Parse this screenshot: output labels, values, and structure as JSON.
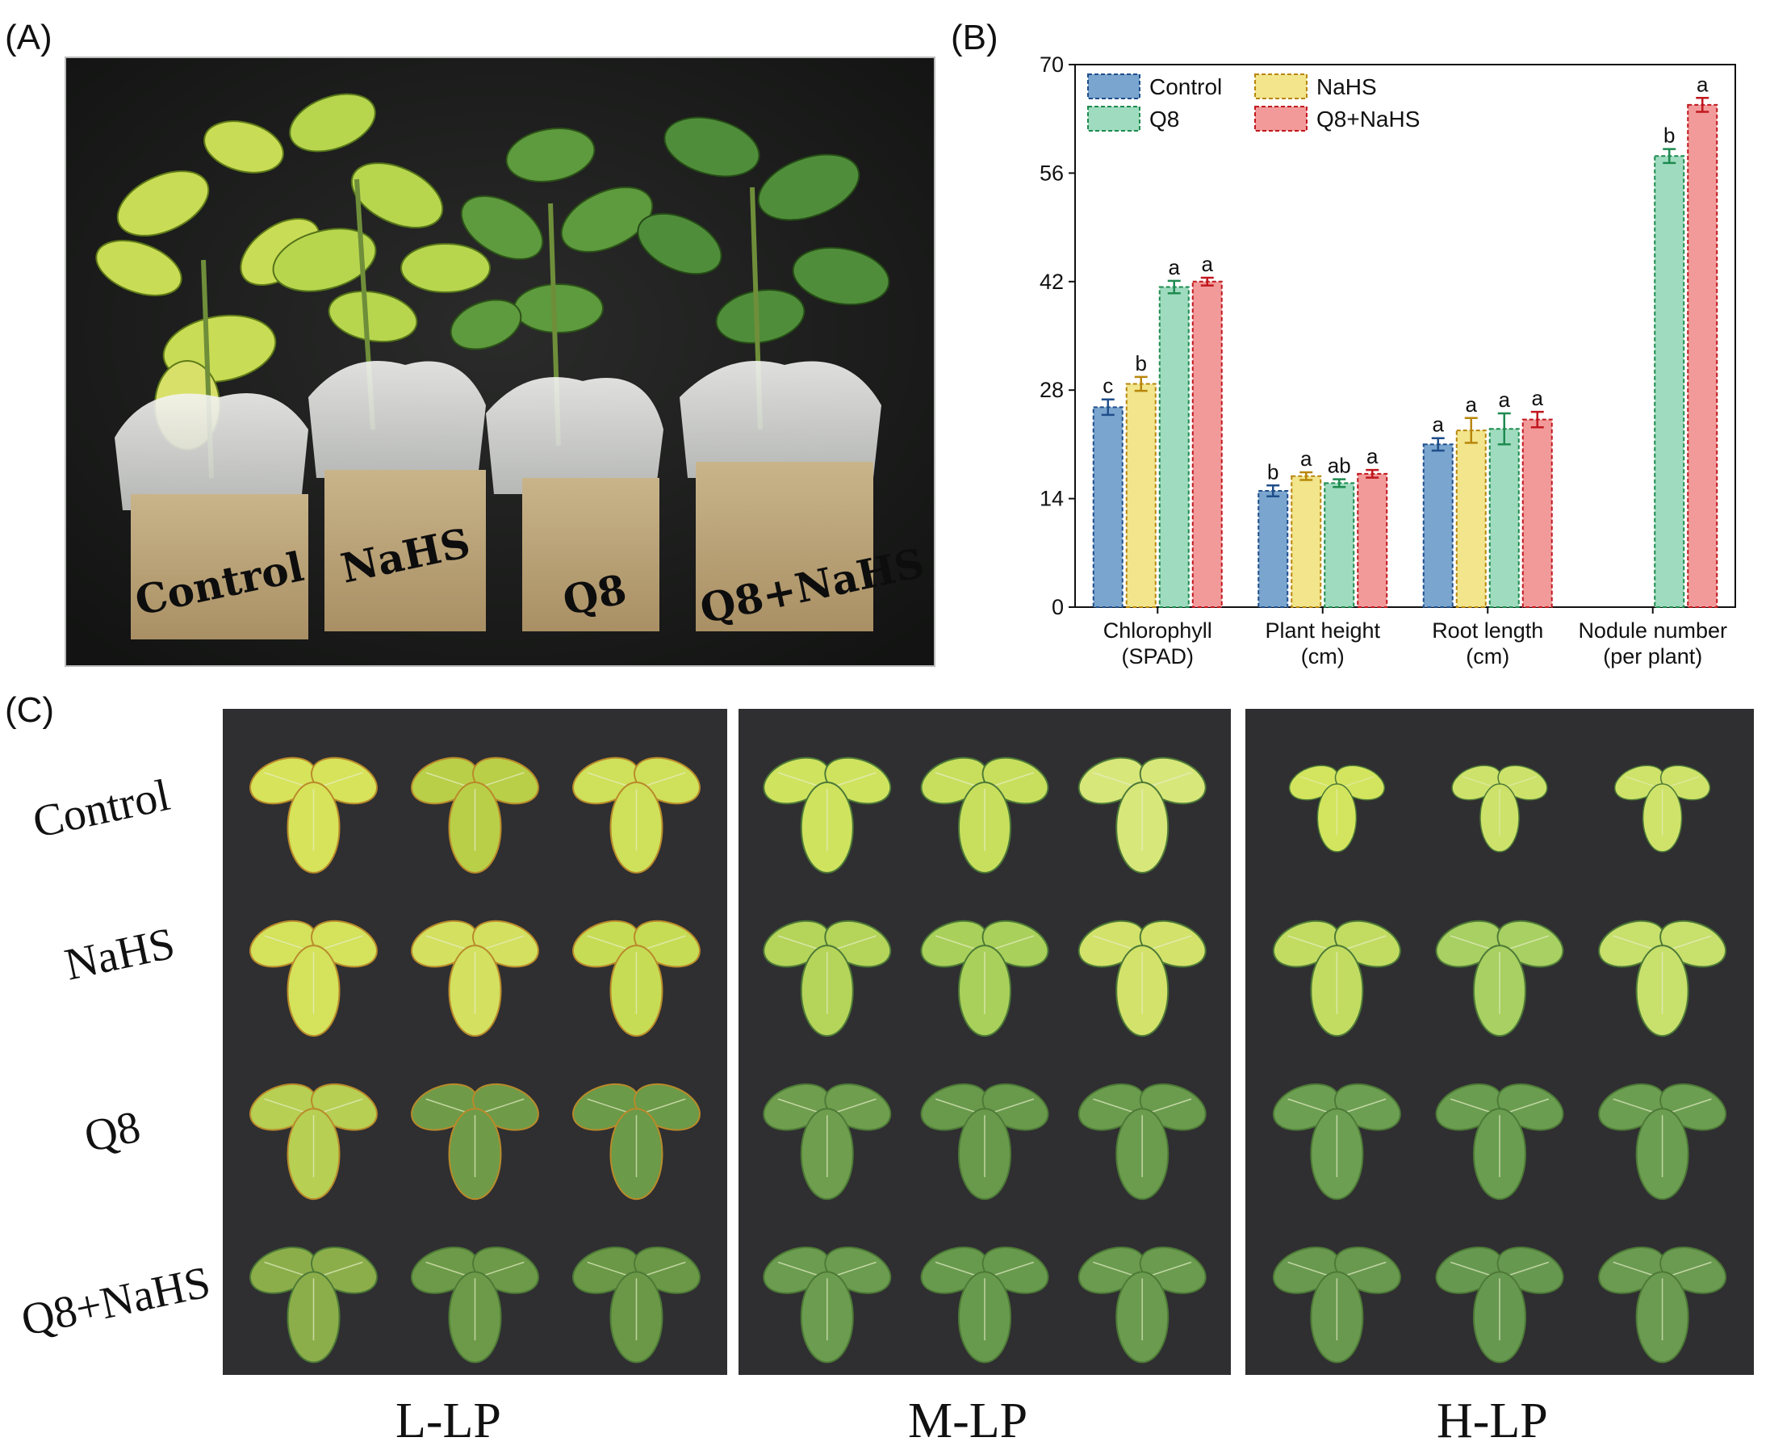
{
  "panels": {
    "a": "(A)",
    "b": "(B)",
    "c": "(C)"
  },
  "photo_a": {
    "pot_labels": [
      "Control",
      "NaHS",
      "Q8",
      "Q8+NaHS"
    ]
  },
  "chart_data": {
    "type": "bar",
    "categories": [
      "Chlorophyll\n(SPAD)",
      "Plant height\n(cm)",
      "Root length\n(cm)",
      "Nodule number\n(per plant)"
    ],
    "ylim": [
      0,
      70
    ],
    "yticks": [
      0,
      14,
      28,
      42,
      56,
      70
    ],
    "legend_position": "top-left",
    "series": [
      {
        "name": "Control",
        "color": "#7aa5cf",
        "edge": "#1f4e8a",
        "values": [
          25.8,
          15.0,
          21.0,
          null
        ],
        "errors": [
          1.0,
          0.7,
          0.8,
          null
        ],
        "letters": [
          "c",
          "b",
          "a",
          ""
        ]
      },
      {
        "name": "NaHS",
        "color": "#f2e58c",
        "edge": "#b8860b",
        "values": [
          28.8,
          16.9,
          22.8,
          null
        ],
        "errors": [
          0.9,
          0.5,
          1.6,
          null
        ],
        "letters": [
          "b",
          "a",
          "a",
          ""
        ]
      },
      {
        "name": "Q8",
        "color": "#9fdcbf",
        "edge": "#1e8a4f",
        "values": [
          41.3,
          16.0,
          23.0,
          58.2
        ],
        "errors": [
          0.8,
          0.5,
          2.0,
          0.9
        ],
        "letters": [
          "a",
          "ab",
          "a",
          "b"
        ]
      },
      {
        "name": "Q8+NaHS",
        "color": "#f29a9a",
        "edge": "#c0181e",
        "values": [
          42.0,
          17.2,
          24.2,
          64.8
        ],
        "errors": [
          0.5,
          0.5,
          1.0,
          0.9
        ],
        "letters": [
          "a",
          "a",
          "a",
          "a"
        ]
      }
    ]
  },
  "grid_c": {
    "rows": [
      "Control",
      "NaHS",
      "Q8",
      "Q8+NaHS"
    ],
    "columns": [
      "L-LP",
      "M-LP",
      "H-LP"
    ]
  }
}
